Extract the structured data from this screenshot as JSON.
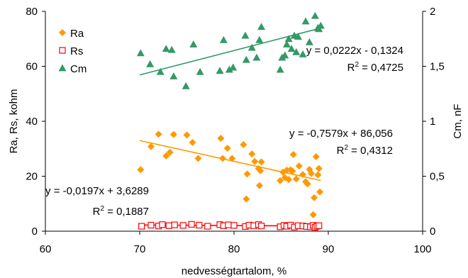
{
  "chart_data": {
    "type": "scatter",
    "xlabel": "nedvességtartalom, %",
    "ylabel": "Ra, Rs, kohm",
    "y2label": "Cm, nF",
    "xlim": [
      60,
      100
    ],
    "ylim": [
      0,
      80
    ],
    "y2lim": [
      0,
      2
    ],
    "xticks": [
      "60",
      "70",
      "80",
      "90",
      "100"
    ],
    "yticks": [
      "0",
      "20",
      "40",
      "60",
      "80"
    ],
    "y2ticks": [
      "0",
      "0,5",
      "1",
      "1,5",
      "2"
    ],
    "grid": false,
    "legend_position": "top-left",
    "series": [
      {
        "name": "Ra",
        "axis": "left",
        "color": "#ff9900",
        "marker": "diamond",
        "x": [
          70.1,
          71.2,
          72.0,
          72.8,
          73.2,
          73.6,
          75.0,
          75.6,
          76.2,
          78.6,
          78.8,
          79.3,
          79.8,
          81.0,
          81.3,
          81.4,
          81.9,
          82.2,
          82.6,
          82.7,
          82.8,
          82.9,
          84.9,
          85.2,
          85.4,
          85.6,
          85.8,
          86.0,
          86.2,
          86.3,
          86.6,
          86.9,
          87.3,
          87.6,
          87.8,
          88.0,
          88.2,
          88.4,
          88.5,
          88.7,
          88.9,
          89.0,
          89.1
        ],
        "y": [
          22.4,
          30.8,
          35.3,
          27.4,
          28.7,
          35.2,
          35.0,
          32.3,
          26.5,
          33.8,
          26.5,
          30.2,
          26.5,
          31.5,
          11.7,
          20.8,
          28.1,
          25.4,
          22.8,
          16.6,
          22.0,
          25.2,
          18.4,
          21.5,
          19.5,
          22.2,
          18.8,
          22.3,
          21.9,
          27.9,
          19.0,
          23.7,
          20.6,
          18.0,
          17.2,
          22.5,
          21.0,
          6.0,
          12.2,
          27.1,
          20.5,
          22.8,
          14.3
        ]
      },
      {
        "name": "Rs",
        "axis": "left",
        "color": "#ff0000",
        "marker": "square-open",
        "x": [
          70.2,
          71.2,
          72.0,
          72.4,
          73.1,
          73.7,
          74.6,
          75.5,
          76.3,
          77.2,
          78.5,
          78.9,
          79.4,
          80.0,
          81.2,
          81.6,
          82.1,
          82.6,
          82.9,
          84.9,
          85.3,
          85.6,
          86.0,
          86.4,
          86.8,
          87.3,
          87.7,
          88.1,
          88.4,
          88.6,
          88.8,
          89.0
        ],
        "y": [
          1.8,
          2.2,
          1.9,
          2.4,
          2.0,
          2.3,
          2.1,
          2.5,
          2.2,
          1.8,
          2.4,
          2.0,
          2.3,
          2.1,
          1.7,
          2.2,
          2.0,
          2.4,
          1.9,
          1.6,
          2.1,
          1.8,
          2.2,
          1.5,
          2.0,
          1.9,
          1.7,
          1.6,
          2.1,
          1.4,
          1.8,
          2.0
        ]
      },
      {
        "name": "Cm",
        "axis": "right",
        "color": "#339966",
        "marker": "triangle",
        "x": [
          70.1,
          71.1,
          72.2,
          72.8,
          73.4,
          73.6,
          74.9,
          75.7,
          76.4,
          78.5,
          78.9,
          79.5,
          79.9,
          81.2,
          81.3,
          81.9,
          82.4,
          82.7,
          82.9,
          84.9,
          85.1,
          85.4,
          85.6,
          85.8,
          86.1,
          86.4,
          86.6,
          86.8,
          87.3,
          87.6,
          88.0,
          88.6,
          88.9,
          89.0,
          89.2
        ],
        "y": [
          1.62,
          1.52,
          1.45,
          1.66,
          1.65,
          1.41,
          1.32,
          1.7,
          1.45,
          1.46,
          1.74,
          1.47,
          1.49,
          1.78,
          1.56,
          1.67,
          1.58,
          1.74,
          1.86,
          1.47,
          1.58,
          1.6,
          1.7,
          1.75,
          1.66,
          1.78,
          1.63,
          1.77,
          1.61,
          1.91,
          1.72,
          1.96,
          1.85,
          1.84,
          1.87
        ]
      }
    ],
    "trendlines": [
      {
        "series": "Cm",
        "axis": "right",
        "x_range": [
          70,
          89.2
        ],
        "slope": 0.0222,
        "intercept": -0.1324,
        "equation": "y = 0,0222x - 0,1324",
        "r2_label": "R",
        "r2_value": " = 0,4725"
      },
      {
        "series": "Ra",
        "axis": "left",
        "x_range": [
          70,
          89.2
        ],
        "slope": -0.7579,
        "intercept": 86.056,
        "equation": "y = -0,7579x + 86,056",
        "r2_label": "R",
        "r2_value": " = 0,4312"
      },
      {
        "series": "Rs",
        "axis": "left",
        "x_range": [
          70,
          89.2
        ],
        "slope": -0.0197,
        "intercept": 3.6289,
        "equation": "y = -0,0197x + 3,6289",
        "r2_label": "R",
        "r2_value": " = 0,1887"
      }
    ]
  }
}
